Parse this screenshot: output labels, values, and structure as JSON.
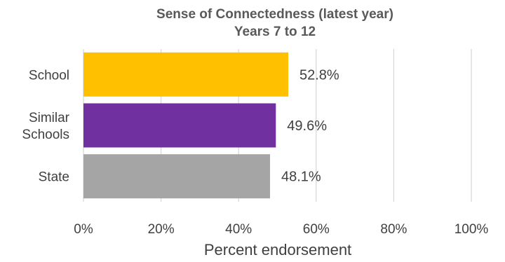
{
  "chart_data": {
    "type": "bar",
    "orientation": "horizontal",
    "title": "Sense of Connectedness (latest year)",
    "subtitle": "Years 7 to 12",
    "xlabel": "Percent endorsement",
    "ylabel": "",
    "xlim": [
      0,
      100
    ],
    "ticks": [
      "0%",
      "20%",
      "40%",
      "60%",
      "80%",
      "100%"
    ],
    "tick_values": [
      0,
      20,
      40,
      60,
      80,
      100
    ],
    "grid": true,
    "legend": "none",
    "categories": [
      {
        "label_lines": [
          "School"
        ],
        "value": 52.8,
        "label": "52.8%",
        "color": "#FFC000"
      },
      {
        "label_lines": [
          "Similar",
          "Schools"
        ],
        "value": 49.6,
        "label": "49.6%",
        "color": "#7030A0"
      },
      {
        "label_lines": [
          "State"
        ],
        "value": 48.1,
        "label": "48.1%",
        "color": "#A5A5A5"
      }
    ]
  }
}
